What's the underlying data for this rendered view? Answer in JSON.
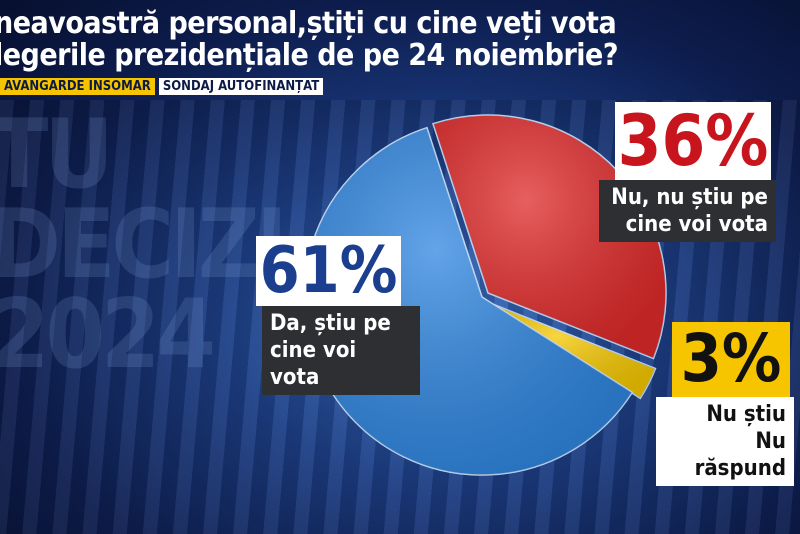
{
  "header": {
    "title_line1": "neavoastră personal,știți cu cine veți vota",
    "title_line2": "legerile prezidențiale de pe 24 noiembrie?",
    "tag_source": "AVANGARDE INSOMAR",
    "tag_funding": "SONDAJ AUTOFINANȚAT"
  },
  "background_text": [
    "TU",
    "DECIZI",
    "2024"
  ],
  "chart_data": {
    "type": "pie",
    "title": "",
    "slices": [
      {
        "label_line1": "Nu, nu știu pe",
        "label_line2": "cine voi vota",
        "value": 36,
        "value_label": "36%",
        "color": "#e02a2a"
      },
      {
        "label_line1": "Nu știu",
        "label_line2": "Nu răspund",
        "value": 3,
        "value_label": "3%",
        "color": "#f6c800"
      },
      {
        "label_line1": "Da, știu pe",
        "label_line2": "cine voi vota",
        "value": 61,
        "value_label": "61%",
        "color": "#2f86e0"
      }
    ]
  }
}
